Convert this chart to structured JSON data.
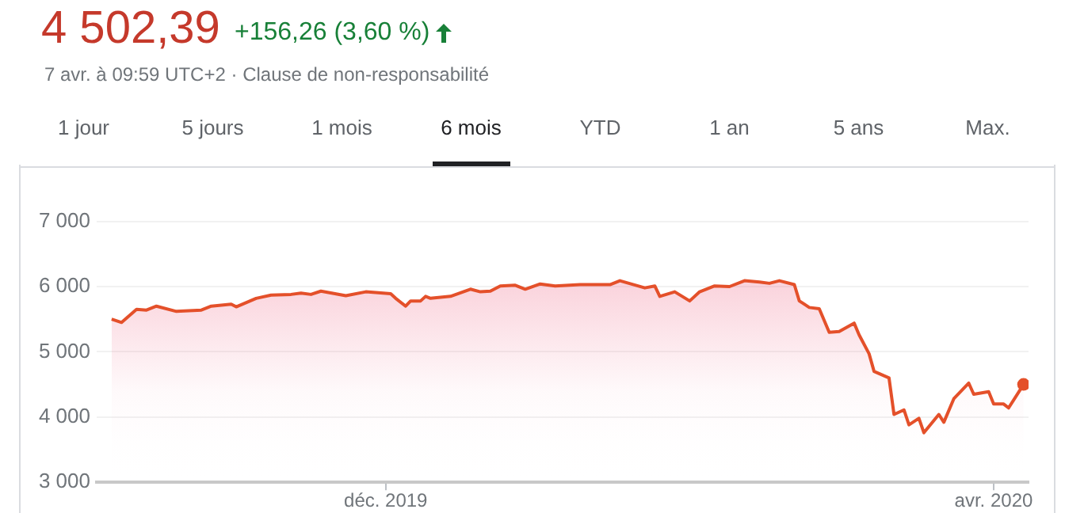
{
  "chart_data": {
    "type": "area",
    "title": "4 502,39",
    "subtitle": "+156,26 (3,60 %)",
    "annotations": [
      "7 avr. à 09:59 UTC+2 · Clause de non-responsabilité",
      "1 jour",
      "5 jours",
      "1 mois",
      "6 mois",
      "YTD",
      "1 an",
      "5 ans",
      "Max."
    ],
    "series": [
      {
        "color": "#e4502a",
        "x": [
          "2019-10-07",
          "2019-10-09",
          "2019-10-12",
          "2019-10-14",
          "2019-10-16",
          "2019-10-20",
          "2019-10-25",
          "2019-10-27",
          "2019-10-31",
          "2019-11-01",
          "2019-11-05",
          "2019-11-08",
          "2019-11-12",
          "2019-11-14",
          "2019-11-16",
          "2019-11-18",
          "2019-11-23",
          "2019-11-27",
          "2019-12-02",
          "2019-12-03",
          "2019-12-05",
          "2019-12-06",
          "2019-12-08",
          "2019-12-09",
          "2019-12-10",
          "2019-12-14",
          "2019-12-18",
          "2019-12-20",
          "2019-12-22",
          "2019-12-24",
          "2019-12-27",
          "2019-12-29",
          "2020-01-01",
          "2020-01-04",
          "2020-01-09",
          "2020-01-15",
          "2020-01-17",
          "2020-01-22",
          "2020-01-24",
          "2020-01-25",
          "2020-01-28",
          "2020-01-31",
          "2020-02-02",
          "2020-02-05",
          "2020-02-08",
          "2020-02-11",
          "2020-02-14",
          "2020-02-16",
          "2020-02-18",
          "2020-02-21",
          "2020-02-22",
          "2020-02-24",
          "2020-02-26",
          "2020-02-28",
          "2020-03-01",
          "2020-03-04",
          "2020-03-05",
          "2020-03-07",
          "2020-03-08",
          "2020-03-11",
          "2020-03-12",
          "2020-03-14",
          "2020-03-15",
          "2020-03-17",
          "2020-03-18",
          "2020-03-21",
          "2020-03-22",
          "2020-03-24",
          "2020-03-27",
          "2020-03-28",
          "2020-03-31",
          "2020-04-01",
          "2020-04-03",
          "2020-04-04",
          "2020-04-07"
        ],
        "values": [
          5500,
          5450,
          5650,
          5640,
          5700,
          5620,
          5640,
          5700,
          5730,
          5690,
          5820,
          5870,
          5880,
          5900,
          5880,
          5930,
          5860,
          5920,
          5890,
          5820,
          5700,
          5780,
          5780,
          5850,
          5820,
          5850,
          5960,
          5920,
          5930,
          6010,
          6020,
          5960,
          6040,
          6010,
          6030,
          6030,
          6090,
          5980,
          6010,
          5850,
          5920,
          5780,
          5920,
          6010,
          6000,
          6090,
          6070,
          6050,
          6090,
          6030,
          5780,
          5680,
          5660,
          5300,
          5310,
          5440,
          5260,
          4970,
          4700,
          4600,
          4040,
          4110,
          3880,
          3980,
          3760,
          4040,
          3920,
          4280,
          4520,
          4350,
          4390,
          4200,
          4200,
          4140,
          4500
        ]
      }
    ],
    "xlim": [
      "2019-10-04",
      "2020-04-08"
    ],
    "xticks": [
      {
        "value": "2019-12-01",
        "label": "déc. 2019"
      },
      {
        "value": "2020-04-01",
        "label": "avr. 2020"
      }
    ],
    "ylim": [
      3000,
      7000
    ],
    "yticks": [
      {
        "value": 3000,
        "label": "3 000"
      },
      {
        "value": 4000,
        "label": "4 000"
      },
      {
        "value": 5000,
        "label": "5 000"
      },
      {
        "value": 6000,
        "label": "6 000"
      },
      {
        "value": 7000,
        "label": "7 000"
      }
    ],
    "grid": "y",
    "legend": false,
    "marker": "none",
    "line_style": "solid"
  }
}
